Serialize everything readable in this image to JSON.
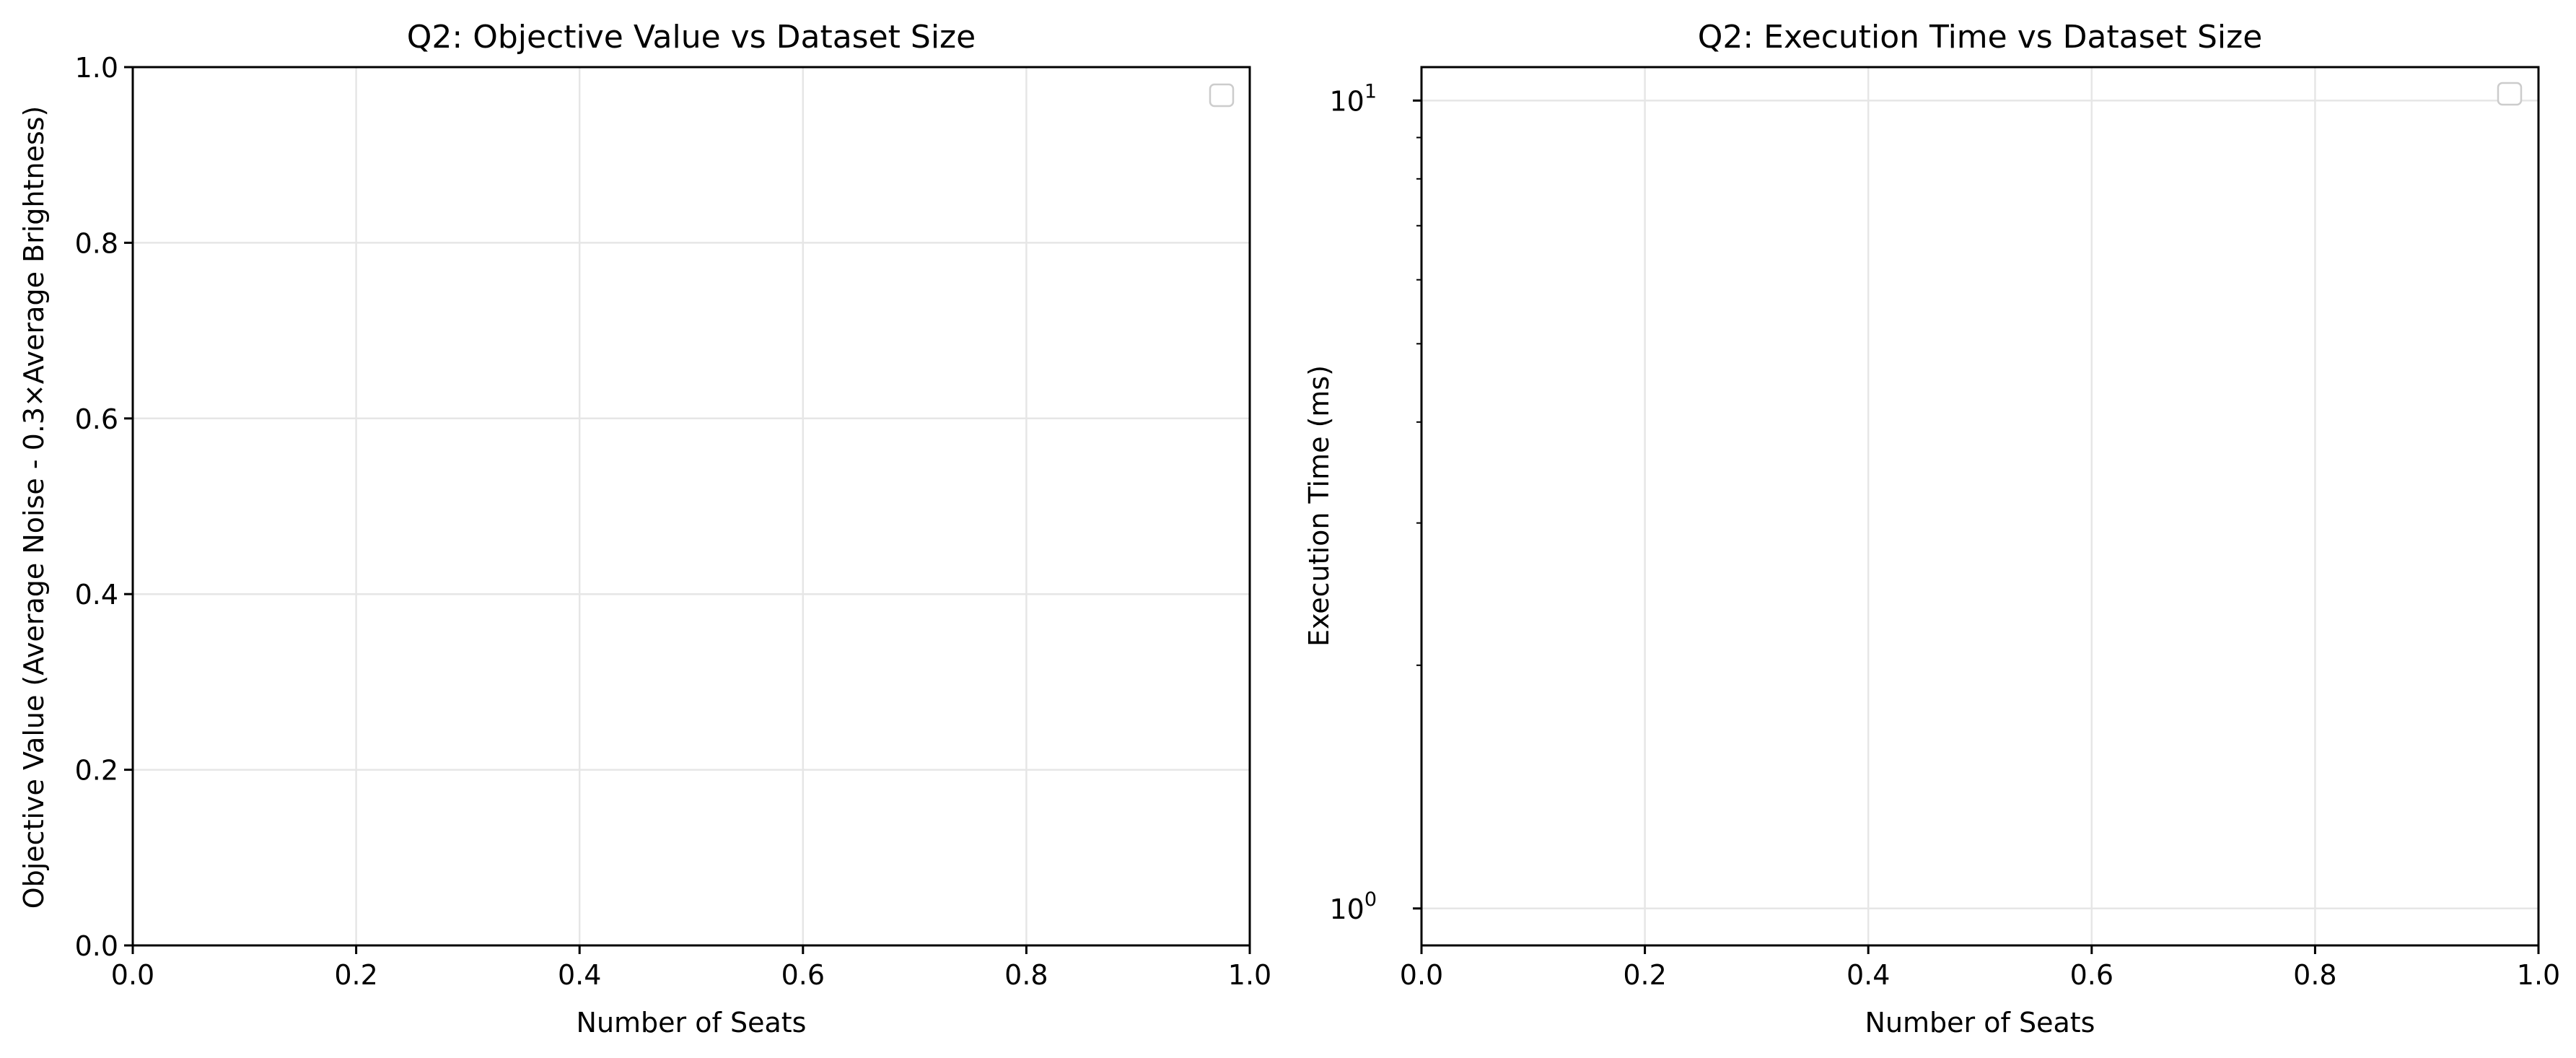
{
  "chart_data": [
    {
      "type": "line",
      "title": "Q2: Objective Value vs Dataset Size",
      "xlabel": "Number of Seats",
      "ylabel": "Objective Value (Average Noise - 0.3×Average Brightness)",
      "xlim": [
        0.0,
        1.0
      ],
      "ylim": [
        0.0,
        1.0
      ],
      "yscale": "linear",
      "xticks": [
        "0.0",
        "0.2",
        "0.4",
        "0.6",
        "0.8",
        "1.0"
      ],
      "yticks": [
        "0.0",
        "0.2",
        "0.4",
        "0.6",
        "0.8",
        "1.0"
      ],
      "grid": true,
      "legend": "top-right",
      "series": []
    },
    {
      "type": "line",
      "title": "Q2: Execution Time vs Dataset Size",
      "xlabel": "Number of Seats",
      "ylabel": "Execution Time (ms)",
      "xlim": [
        0.0,
        1.0
      ],
      "ylim": [
        0.9,
        11.0
      ],
      "yscale": "log",
      "xticks": [
        "0.0",
        "0.2",
        "0.4",
        "0.6",
        "0.8",
        "1.0"
      ],
      "yticks": [
        {
          "value": 1,
          "base": "10",
          "exp": "0"
        },
        {
          "value": 10,
          "base": "10",
          "exp": "1"
        }
      ],
      "grid": true,
      "legend": "top-right",
      "series": []
    }
  ]
}
